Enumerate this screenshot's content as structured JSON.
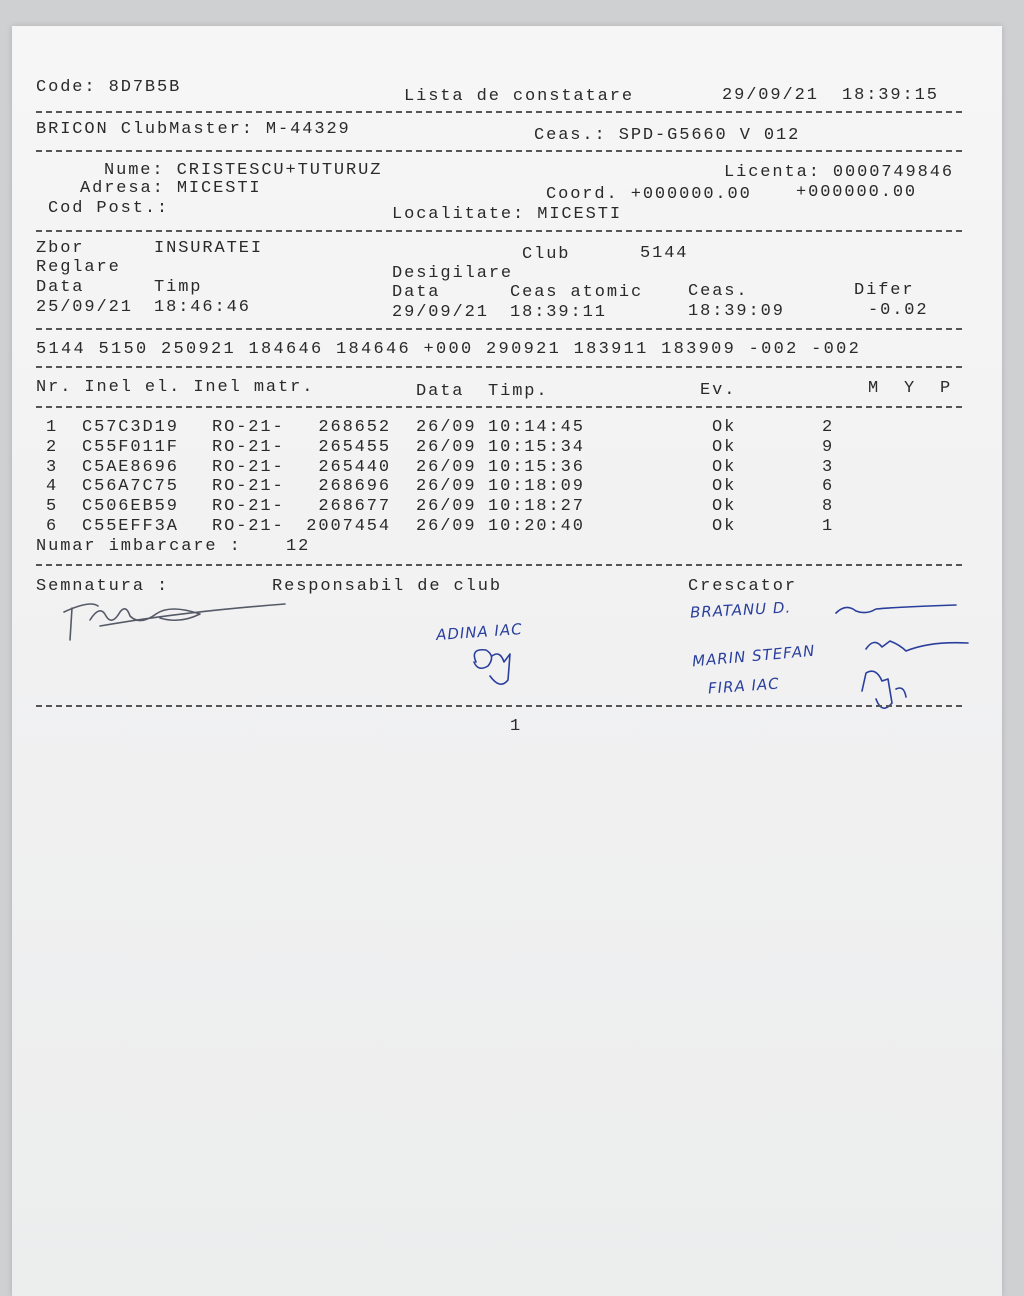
{
  "header": {
    "code": "Code: 8D7B5B",
    "title": "Lista de constatare",
    "date": "29/09/21",
    "time": "18:39:15"
  },
  "system": {
    "clubmaster": "BRICON ClubMaster: M-44329",
    "clock": "Ceas.: SPD-G5660 V 012"
  },
  "owner": {
    "name": "Nume: CRISTESCU+TUTURUZ",
    "license": "Licenta: 0000749846",
    "address": "Adresa: MICESTI",
    "coord_x": "Coord. +000000.00",
    "coord_y": "+000000.00",
    "postal": "Cod Post.:",
    "locality": "Localitate: MICESTI"
  },
  "flight": {
    "zbor_label": "Zbor",
    "zbor_value": "INSURATEI",
    "club_label": "Club",
    "club_value": "5144",
    "reglare": "Reglare",
    "desigilare": "Desigilare",
    "data_label": "Data",
    "timp_label": "Timp",
    "data2_label": "Data",
    "atomic_label": "Ceas atomic",
    "ceas_label": "Ceas.",
    "difer_label": "Difer",
    "reg_date": "25/09/21",
    "reg_time": "18:46:46",
    "des_date": "29/09/21",
    "des_atomic": "18:39:11",
    "des_clock": "18:39:09",
    "difer": "-0.02"
  },
  "code_line": "5144 5150 250921 184646 184646 +000 290921 183911 183909 -002 -002",
  "table": {
    "headers": {
      "nr": "Nr. Inel el. Inel matr.",
      "data": "Data",
      "timp": "Timp.",
      "ev": "Ev.",
      "m": "M",
      "y": "Y",
      "p": "P"
    },
    "rows": [
      {
        "nr": "1",
        "inel_el": "C57C3D19",
        "prefix": "RO-21-",
        "matr": "268652",
        "date": "26/09",
        "time": "10:14:45",
        "ev": "Ok",
        "p": "2"
      },
      {
        "nr": "2",
        "inel_el": "C55F011F",
        "prefix": "RO-21-",
        "matr": "265455",
        "date": "26/09",
        "time": "10:15:34",
        "ev": "Ok",
        "p": "9"
      },
      {
        "nr": "3",
        "inel_el": "C5AE8696",
        "prefix": "RO-21-",
        "matr": "265440",
        "date": "26/09",
        "time": "10:15:36",
        "ev": "Ok",
        "p": "3"
      },
      {
        "nr": "4",
        "inel_el": "C56A7C75",
        "prefix": "RO-21-",
        "matr": "268696",
        "date": "26/09",
        "time": "10:18:09",
        "ev": "Ok",
        "p": "6"
      },
      {
        "nr": "5",
        "inel_el": "C506EB59",
        "prefix": "RO-21-",
        "matr": "268677",
        "date": "26/09",
        "time": "10:18:27",
        "ev": "Ok",
        "p": "8"
      },
      {
        "nr": "6",
        "inel_el": "C55EFF3A",
        "prefix": "RO-21-",
        "matr": "2007454",
        "date": "26/09",
        "time": "10:20:40",
        "ev": "Ok",
        "p": "1"
      }
    ],
    "boarding_label": "Numar imbarcare :",
    "boarding_value": "12"
  },
  "signatures": {
    "semnatura": "Semnatura :",
    "responsabil": "Responsabil de club",
    "crescator": "Crescator",
    "handwritten_club": "ADINA IAC",
    "handwritten_breeder_1": "BRATANU D.",
    "handwritten_breeder_2": "MARIN STEFAN",
    "handwritten_breeder_3": "FIRA IAC"
  },
  "page_number": "1",
  "colors": {
    "ink": "#2a2a2a",
    "pen": "#2a3f9c",
    "paper": "#f3f3f3"
  }
}
